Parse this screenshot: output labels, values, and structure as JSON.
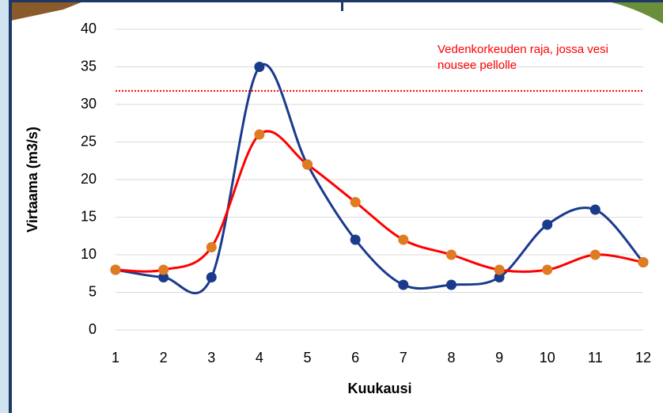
{
  "chart_data": {
    "type": "line",
    "x": [
      1,
      2,
      3,
      4,
      5,
      6,
      7,
      8,
      9,
      10,
      11,
      12
    ],
    "series": [
      {
        "color": "#1a3a8c",
        "marker_color": "#1a3a8c",
        "values": [
          8,
          7,
          7,
          35,
          22,
          12,
          6,
          6,
          7,
          14,
          16,
          9
        ]
      },
      {
        "color": "#ff0000",
        "marker_color": "#e07b22",
        "values": [
          8,
          8,
          11,
          26,
          22,
          17,
          12,
          10,
          8,
          8,
          10,
          9
        ]
      }
    ],
    "xlim": [
      1,
      12
    ],
    "xticks": [
      1,
      2,
      3,
      4,
      5,
      6,
      7,
      8,
      9,
      10,
      11,
      12
    ],
    "ylim": [
      0,
      40
    ],
    "yticks": [
      0,
      5,
      10,
      15,
      20,
      25,
      30,
      35,
      40
    ],
    "grid": true,
    "smooth": true,
    "xlabel": "Kuukausi",
    "ylabel": "Virtaama (m3/s)",
    "threshold": 31.8,
    "threshold_color": "#ff0000",
    "annotation": "Vedenkorkeuden raja, jossa vesi nousee pellolle"
  }
}
